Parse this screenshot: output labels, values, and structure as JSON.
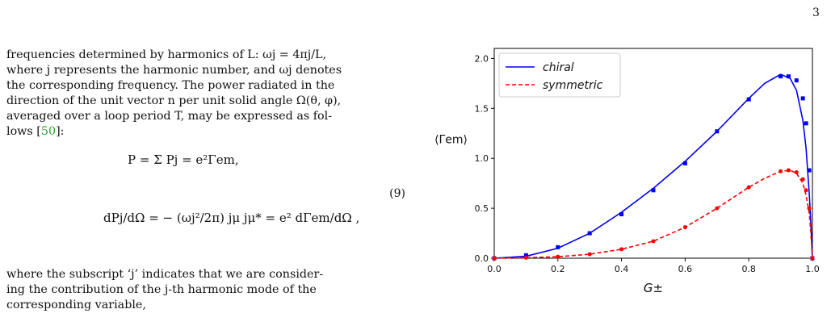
{
  "page_number": "3",
  "paragraph1": {
    "line1": "frequencies determined by harmonics of L: ωj = 4πj/L,",
    "line2": "where j represents the harmonic number, and ωj denotes",
    "line3": "the corresponding frequency. The power radiated in the",
    "line4": "direction of the unit vector n per unit solid angle Ω(θ, φ),",
    "line5": "averaged over a loop period T, may be expressed as fol-",
    "line6_pre": "lows [",
    "line6_ref": "50",
    "line6_post": "]:"
  },
  "equation": {
    "line1": "P = Σ Pj = e²Γem,",
    "line2": "dPj/dΩ = − (ωj²/2π) jμ jμ* = e² dΓem/dΩ ,",
    "number": "(9)"
  },
  "paragraph2": {
    "line1": "where the subscript ‘j’ indicates that we are consider-",
    "line2": "ing the contribution of the j-th harmonic mode of the",
    "line3": "corresponding variable,"
  },
  "chart_data": {
    "type": "line",
    "xlabel": "G±",
    "ylabel": "⟨Γem⟩",
    "xlim": [
      0.0,
      1.0
    ],
    "ylim": [
      0.0,
      2.1
    ],
    "xticks": [
      "0.0",
      "0.2",
      "0.4",
      "0.6",
      "0.8",
      "1.0"
    ],
    "yticks": [
      "0.0",
      "0.5",
      "1.0",
      "1.5",
      "2.0"
    ],
    "legend_position": "top-left",
    "series": [
      {
        "name": "chiral",
        "color": "#0000ff",
        "line_style": "solid",
        "curve": {
          "x": [
            0.0,
            0.1,
            0.2,
            0.3,
            0.4,
            0.5,
            0.6,
            0.7,
            0.8,
            0.85,
            0.9,
            0.93,
            0.95,
            0.97,
            0.98,
            0.99,
            0.995,
            1.0
          ],
          "y": [
            0.0,
            0.02,
            0.1,
            0.25,
            0.46,
            0.7,
            0.97,
            1.27,
            1.6,
            1.75,
            1.84,
            1.8,
            1.68,
            1.38,
            1.1,
            0.65,
            0.35,
            0.0
          ]
        },
        "markers": {
          "x": [
            0.0,
            0.1,
            0.2,
            0.3,
            0.4,
            0.5,
            0.6,
            0.7,
            0.8,
            0.9,
            0.925,
            0.95,
            0.97,
            0.98,
            0.99,
            1.0
          ],
          "y": [
            0.0,
            0.03,
            0.11,
            0.25,
            0.44,
            0.68,
            0.95,
            1.27,
            1.59,
            1.82,
            1.82,
            1.78,
            1.6,
            1.35,
            0.88,
            0.0
          ]
        }
      },
      {
        "name": "symmetric",
        "color": "#ff0000",
        "line_style": "dashed",
        "curve": {
          "x": [
            0.0,
            0.1,
            0.2,
            0.3,
            0.4,
            0.5,
            0.6,
            0.7,
            0.8,
            0.85,
            0.9,
            0.93,
            0.95,
            0.97,
            0.98,
            0.99,
            0.995,
            1.0
          ],
          "y": [
            0.0,
            0.005,
            0.015,
            0.04,
            0.09,
            0.17,
            0.31,
            0.5,
            0.71,
            0.8,
            0.87,
            0.88,
            0.85,
            0.75,
            0.63,
            0.45,
            0.26,
            0.0
          ]
        },
        "markers": {
          "x": [
            0.0,
            0.1,
            0.2,
            0.3,
            0.4,
            0.5,
            0.6,
            0.7,
            0.8,
            0.9,
            0.925,
            0.95,
            0.97,
            0.98,
            0.99,
            1.0
          ],
          "y": [
            0.0,
            0.005,
            0.015,
            0.04,
            0.09,
            0.17,
            0.31,
            0.5,
            0.71,
            0.87,
            0.88,
            0.86,
            0.79,
            0.68,
            0.5,
            0.0
          ]
        }
      }
    ]
  }
}
